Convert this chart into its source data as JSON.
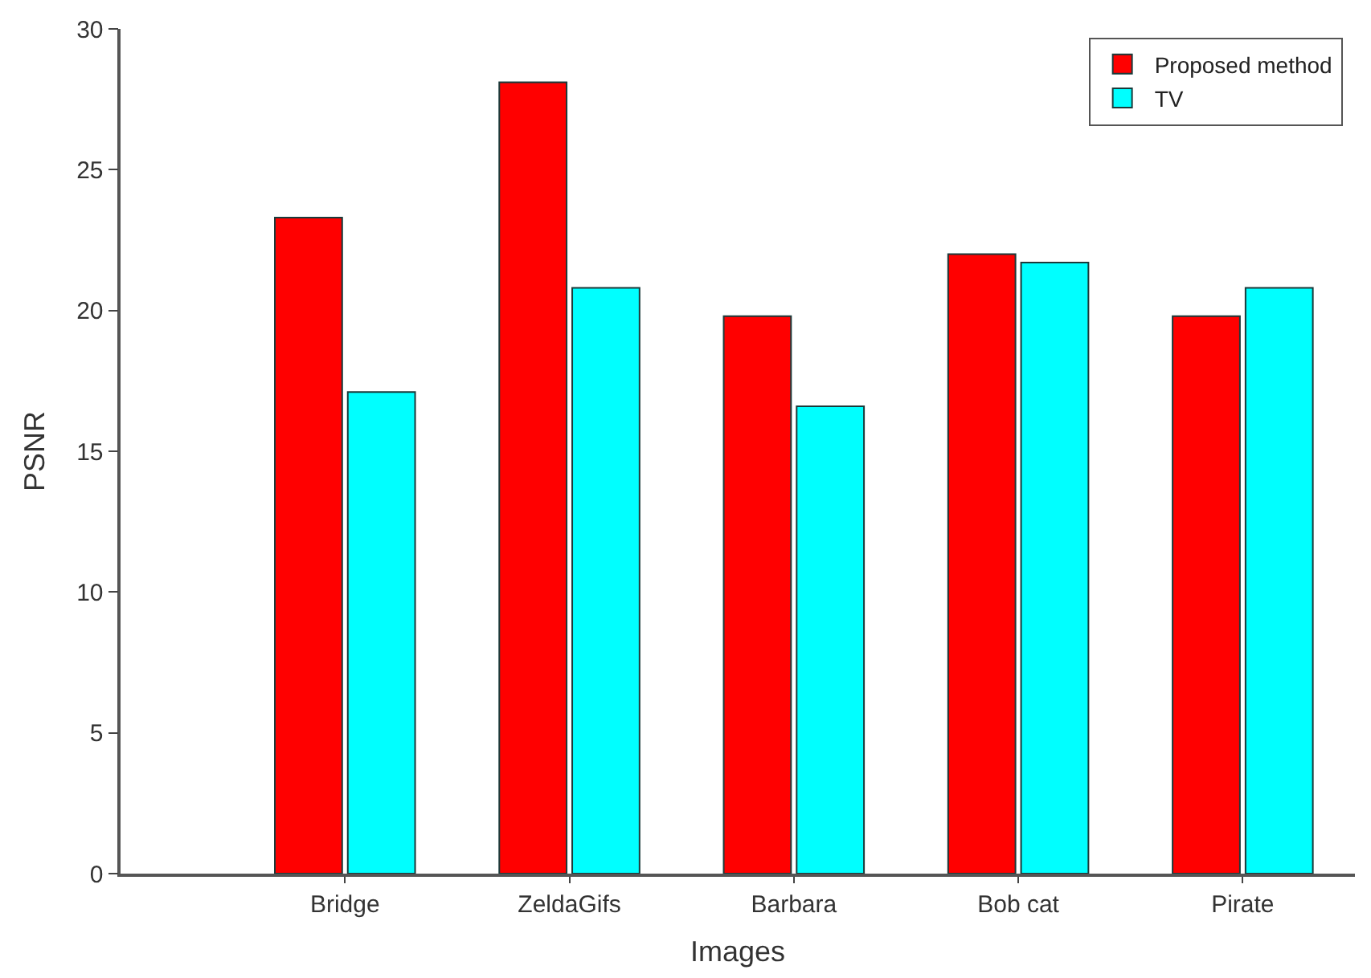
{
  "chart_data": {
    "type": "bar",
    "xlabel": "Images",
    "ylabel": "PSNR",
    "categories": [
      "Bridge",
      "ZeldaGifs",
      "Barbara",
      "Bob cat",
      "Pirate"
    ],
    "series": [
      {
        "name": "Proposed method",
        "color": "#ff0000",
        "values": [
          23.3,
          28.1,
          19.8,
          22.0,
          19.8
        ]
      },
      {
        "name": "TV",
        "color": "#00ffff",
        "values": [
          17.1,
          20.8,
          16.6,
          21.7,
          20.8
        ]
      }
    ],
    "ylim": [
      0,
      30
    ],
    "yticks": [
      0,
      5,
      10,
      15,
      20,
      25,
      30
    ],
    "legend": "top right"
  }
}
